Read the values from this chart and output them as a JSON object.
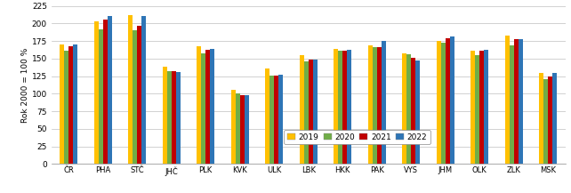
{
  "categories": [
    "ČR",
    "PHA",
    "STČ",
    "JHČ",
    "PLK",
    "KVK",
    "ULK",
    "LBK",
    "HKK",
    "PAK",
    "VYS",
    "JHM",
    "OLK",
    "ZLK",
    "MSK"
  ],
  "series": {
    "2019": [
      170,
      203,
      212,
      139,
      167,
      105,
      136,
      155,
      164,
      169,
      157,
      175,
      161,
      183,
      130
    ],
    "2020": [
      161,
      191,
      190,
      132,
      157,
      101,
      126,
      146,
      161,
      166,
      156,
      172,
      155,
      169,
      121
    ],
    "2021": [
      168,
      206,
      196,
      132,
      163,
      98,
      126,
      148,
      161,
      166,
      151,
      179,
      161,
      177,
      125
    ],
    "2022": [
      170,
      210,
      211,
      131,
      164,
      98,
      127,
      149,
      162,
      175,
      147,
      181,
      163,
      178,
      130
    ]
  },
  "colors": {
    "2019": "#FFC000",
    "2020": "#70AD47",
    "2021": "#C00000",
    "2022": "#2E75B6"
  },
  "ylabel": "Rok 2000 = 100 %",
  "ylim": [
    0,
    225
  ],
  "yticks": [
    0,
    25,
    50,
    75,
    100,
    125,
    150,
    175,
    200,
    225
  ],
  "legend_years": [
    "2019",
    "2020",
    "2021",
    "2022"
  ],
  "background_color": "#FFFFFF",
  "grid_color": "#BFBFBF",
  "bar_border_color": "#FFFFFF",
  "figsize": [
    6.42,
    2.17
  ],
  "dpi": 100
}
